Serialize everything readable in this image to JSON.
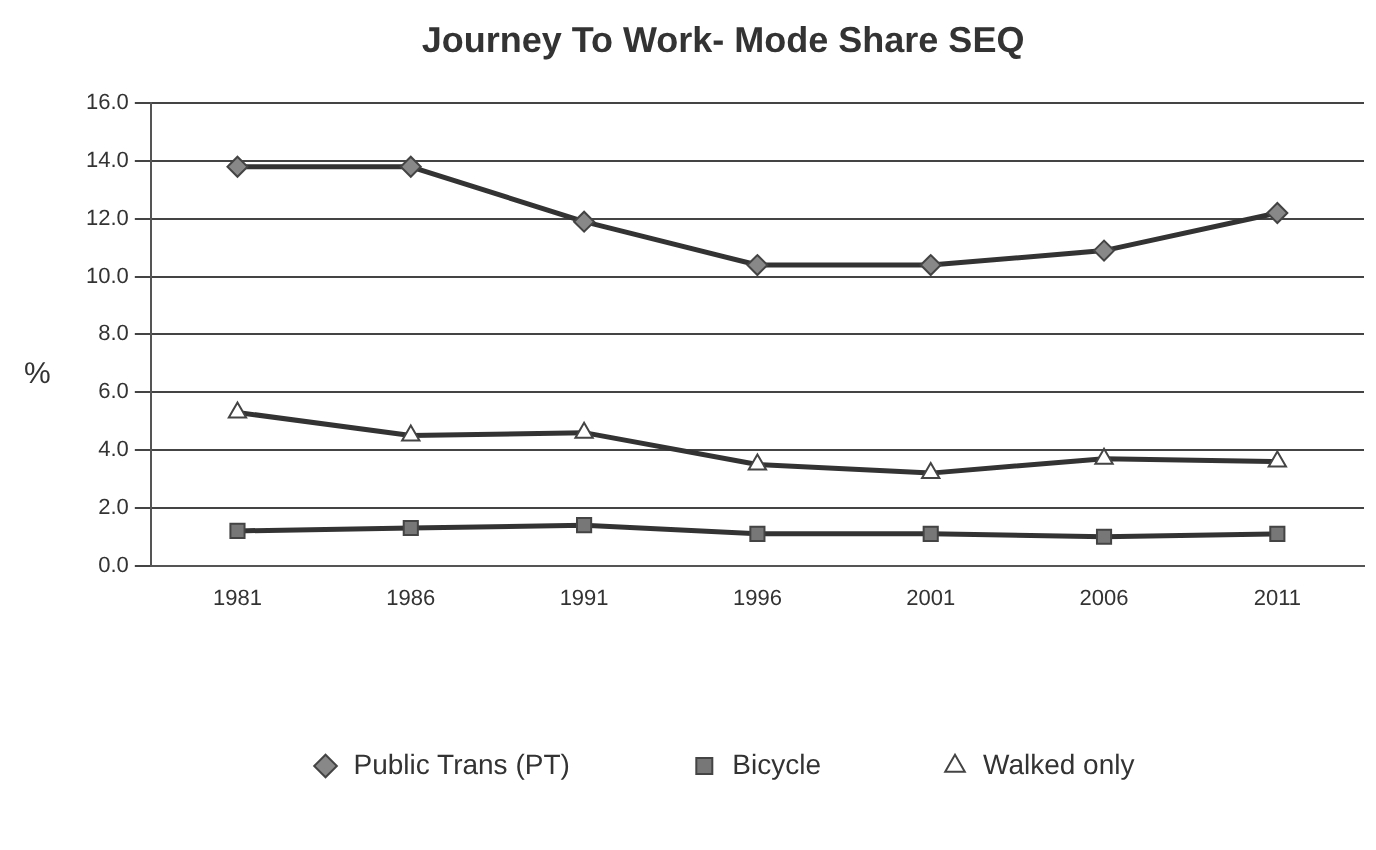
{
  "chart_data": {
    "type": "line",
    "title": "Journey To Work- Mode Share SEQ",
    "ylabel": "%",
    "categories": [
      "1981",
      "1986",
      "1991",
      "1996",
      "2001",
      "2006",
      "2011"
    ],
    "series": [
      {
        "name": "Public Trans (PT)",
        "color": "#333333",
        "marker": "diamond",
        "values": [
          13.8,
          13.8,
          11.9,
          10.4,
          10.4,
          10.9,
          12.2
        ]
      },
      {
        "name": "Bicycle",
        "color": "#333333",
        "marker": "square",
        "values": [
          1.2,
          1.3,
          1.4,
          1.1,
          1.1,
          1.0,
          1.1
        ]
      },
      {
        "name": "Walked only",
        "color": "#333333",
        "marker": "triangle",
        "values": [
          5.3,
          4.5,
          4.6,
          3.5,
          3.2,
          3.7,
          3.6
        ]
      }
    ],
    "ylim": [
      0,
      16
    ],
    "yticks": [
      {
        "value": 0,
        "label": "0.0"
      },
      {
        "value": 2,
        "label": "2.0"
      },
      {
        "value": 4,
        "label": "4.0"
      },
      {
        "value": 6,
        "label": "6.0"
      },
      {
        "value": 8,
        "label": "8.0"
      },
      {
        "value": 10,
        "label": "10.0"
      },
      {
        "value": 12,
        "label": "12.0"
      },
      {
        "value": 14,
        "label": "14.0"
      },
      {
        "value": 16,
        "label": "16.0"
      }
    ],
    "grid": "y",
    "legend": "bottom"
  }
}
